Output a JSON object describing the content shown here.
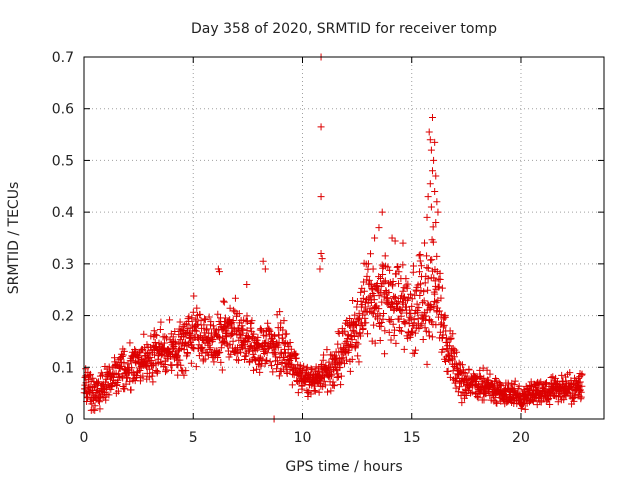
{
  "chart_data": {
    "type": "scatter",
    "title": "Day 358 of 2020, SRMTID for receiver tomp",
    "xlabel": "GPS time / hours",
    "ylabel": "SRMTID / TECUs",
    "xlim": [
      0,
      23.8
    ],
    "ylim": [
      0,
      0.7
    ],
    "xticks": [
      0,
      5,
      10,
      15,
      20
    ],
    "yticks": [
      0,
      0.1,
      0.2,
      0.3,
      0.4,
      0.5,
      0.6,
      0.7
    ],
    "xtick_labels": [
      "0",
      "5",
      "10",
      "15",
      "20"
    ],
    "ytick_labels": [
      "0",
      "0.1",
      "0.2",
      "0.3",
      "0.4",
      "0.5",
      "0.6",
      "0.7"
    ],
    "grid": true,
    "marker": "plus",
    "color": "#dd0000",
    "baseline_envelope": {
      "x": [
        0,
        0.5,
        1,
        1.5,
        2,
        2.5,
        3,
        3.5,
        4,
        4.5,
        5,
        5.5,
        6,
        6.5,
        7,
        7.5,
        8,
        8.5,
        9,
        9.5,
        10,
        10.5,
        11,
        11.5,
        12,
        12.5,
        13,
        13.5,
        14,
        14.5,
        15,
        15.5,
        16,
        16.5,
        17,
        17.5,
        18,
        18.5,
        19,
        19.5,
        20,
        20.5,
        21,
        21.5,
        22,
        22.5,
        22.8
      ],
      "y": [
        0.06,
        0.05,
        0.07,
        0.09,
        0.1,
        0.11,
        0.12,
        0.13,
        0.13,
        0.14,
        0.17,
        0.16,
        0.15,
        0.17,
        0.16,
        0.15,
        0.13,
        0.15,
        0.14,
        0.11,
        0.08,
        0.07,
        0.09,
        0.1,
        0.14,
        0.18,
        0.24,
        0.22,
        0.24,
        0.22,
        0.2,
        0.21,
        0.26,
        0.16,
        0.09,
        0.07,
        0.07,
        0.06,
        0.05,
        0.05,
        0.04,
        0.05,
        0.05,
        0.06,
        0.06,
        0.06,
        0.06
      ]
    },
    "spread_envelope": {
      "x": [
        0,
        2,
        5,
        7,
        9,
        10,
        11,
        12,
        13,
        14,
        15,
        16,
        16.5,
        17,
        20,
        22.8
      ],
      "y": [
        0.03,
        0.035,
        0.05,
        0.05,
        0.045,
        0.025,
        0.03,
        0.05,
        0.07,
        0.08,
        0.07,
        0.09,
        0.06,
        0.03,
        0.02,
        0.025
      ]
    },
    "highlight_points": [
      {
        "x": 10.85,
        "y": 0.7
      },
      {
        "x": 10.85,
        "y": 0.565
      },
      {
        "x": 10.85,
        "y": 0.43
      },
      {
        "x": 10.85,
        "y": 0.32
      },
      {
        "x": 10.9,
        "y": 0.31
      },
      {
        "x": 10.8,
        "y": 0.29
      },
      {
        "x": 15.95,
        "y": 0.583
      },
      {
        "x": 15.8,
        "y": 0.555
      },
      {
        "x": 15.85,
        "y": 0.54
      },
      {
        "x": 16.05,
        "y": 0.535
      },
      {
        "x": 15.9,
        "y": 0.52
      },
      {
        "x": 16.0,
        "y": 0.5
      },
      {
        "x": 15.95,
        "y": 0.48
      },
      {
        "x": 16.1,
        "y": 0.47
      },
      {
        "x": 15.85,
        "y": 0.455
      },
      {
        "x": 16.05,
        "y": 0.44
      },
      {
        "x": 15.75,
        "y": 0.43
      },
      {
        "x": 16.15,
        "y": 0.42
      },
      {
        "x": 15.9,
        "y": 0.41
      },
      {
        "x": 16.2,
        "y": 0.4
      },
      {
        "x": 15.7,
        "y": 0.39
      },
      {
        "x": 16.1,
        "y": 0.38
      },
      {
        "x": 13.65,
        "y": 0.4
      },
      {
        "x": 13.5,
        "y": 0.37
      },
      {
        "x": 14.1,
        "y": 0.35
      },
      {
        "x": 14.6,
        "y": 0.34
      },
      {
        "x": 13.3,
        "y": 0.35
      },
      {
        "x": 6.15,
        "y": 0.29
      },
      {
        "x": 6.2,
        "y": 0.285
      },
      {
        "x": 8.2,
        "y": 0.305
      },
      {
        "x": 8.3,
        "y": 0.29
      },
      {
        "x": 7.45,
        "y": 0.26
      },
      {
        "x": 8.7,
        "y": 0.0
      }
    ]
  }
}
